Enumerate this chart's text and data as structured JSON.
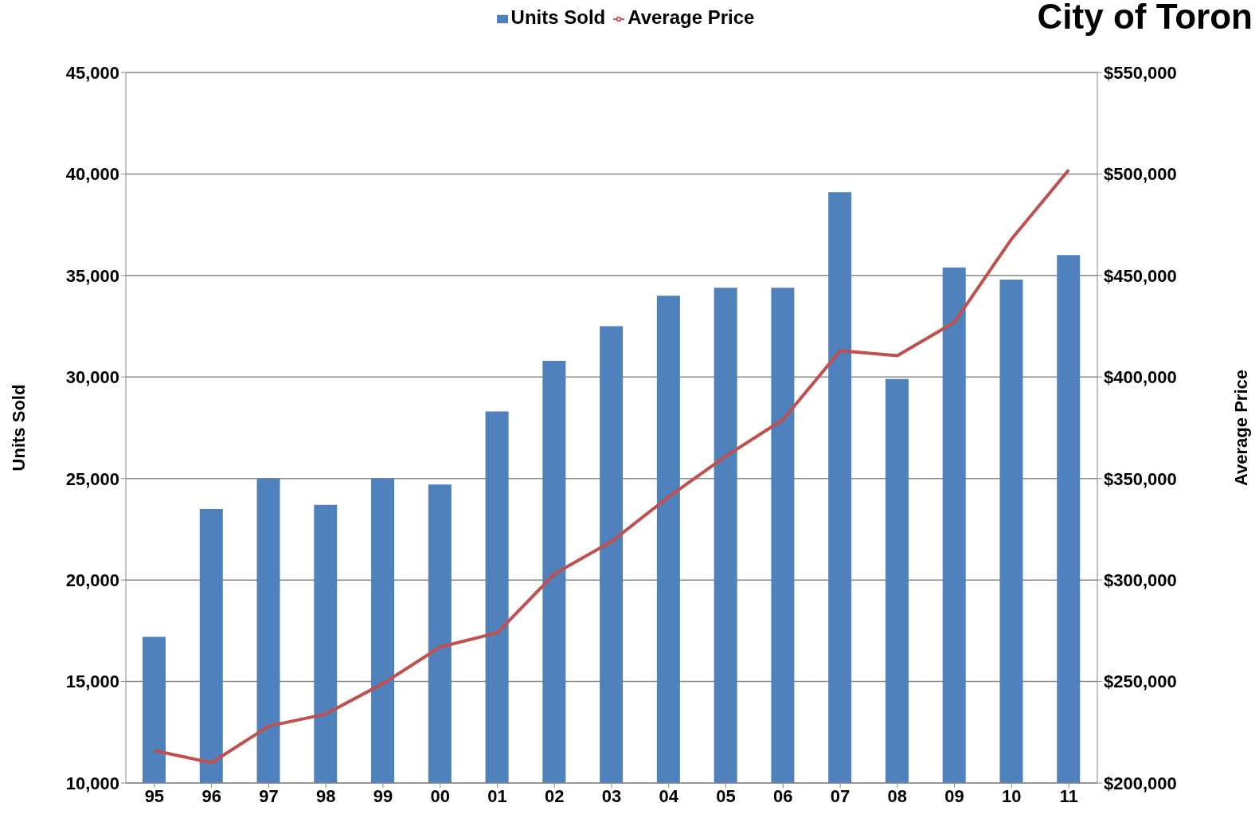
{
  "chart_data": {
    "type": "bar",
    "title": "City of Toron",
    "ylabel": "Units Sold",
    "y2label": "Average Price",
    "categories": [
      "95",
      "96",
      "97",
      "98",
      "99",
      "00",
      "01",
      "02",
      "03",
      "04",
      "05",
      "06",
      "07",
      "08",
      "09",
      "10",
      "11"
    ],
    "series": [
      {
        "name": "Units Sold",
        "color": "#4f81bd",
        "values": [
          17200,
          23500,
          25000,
          23700,
          25000,
          24700,
          28300,
          30800,
          32500,
          34000,
          34400,
          34400,
          39100,
          29900,
          35400,
          34800,
          36000
        ]
      },
      {
        "name": "Average Price",
        "type": "line",
        "axis": "y2",
        "color": "#c0504d",
        "marker": "none",
        "values": [
          216000,
          210000,
          228000,
          234000,
          249000,
          267000,
          274000,
          303000,
          319000,
          341000,
          361000,
          379000,
          413000,
          410500,
          427000,
          468000,
          502000
        ]
      }
    ],
    "ylim": [
      10000,
      45000
    ],
    "yticks": [
      {
        "value": 10000,
        "label": "10,000"
      },
      {
        "value": 15000,
        "label": "15,000"
      },
      {
        "value": 20000,
        "label": "20,000"
      },
      {
        "value": 25000,
        "label": "25,000"
      },
      {
        "value": 30000,
        "label": "30,000"
      },
      {
        "value": 35000,
        "label": "35,000"
      },
      {
        "value": 40000,
        "label": "40,000"
      },
      {
        "value": 45000,
        "label": "45,000"
      }
    ],
    "y2lim": [
      200000,
      550000
    ],
    "y2ticks": [
      {
        "value": 200000,
        "label": "$200,000"
      },
      {
        "value": 250000,
        "label": "$250,000"
      },
      {
        "value": 300000,
        "label": "$300,000"
      },
      {
        "value": 350000,
        "label": "$350,000"
      },
      {
        "value": 400000,
        "label": "$400,000"
      },
      {
        "value": 450000,
        "label": "$450,000"
      },
      {
        "value": 500000,
        "label": "$500,000"
      },
      {
        "value": 550000,
        "label": "$550,000"
      }
    ],
    "grid": "y",
    "legend": "top"
  }
}
